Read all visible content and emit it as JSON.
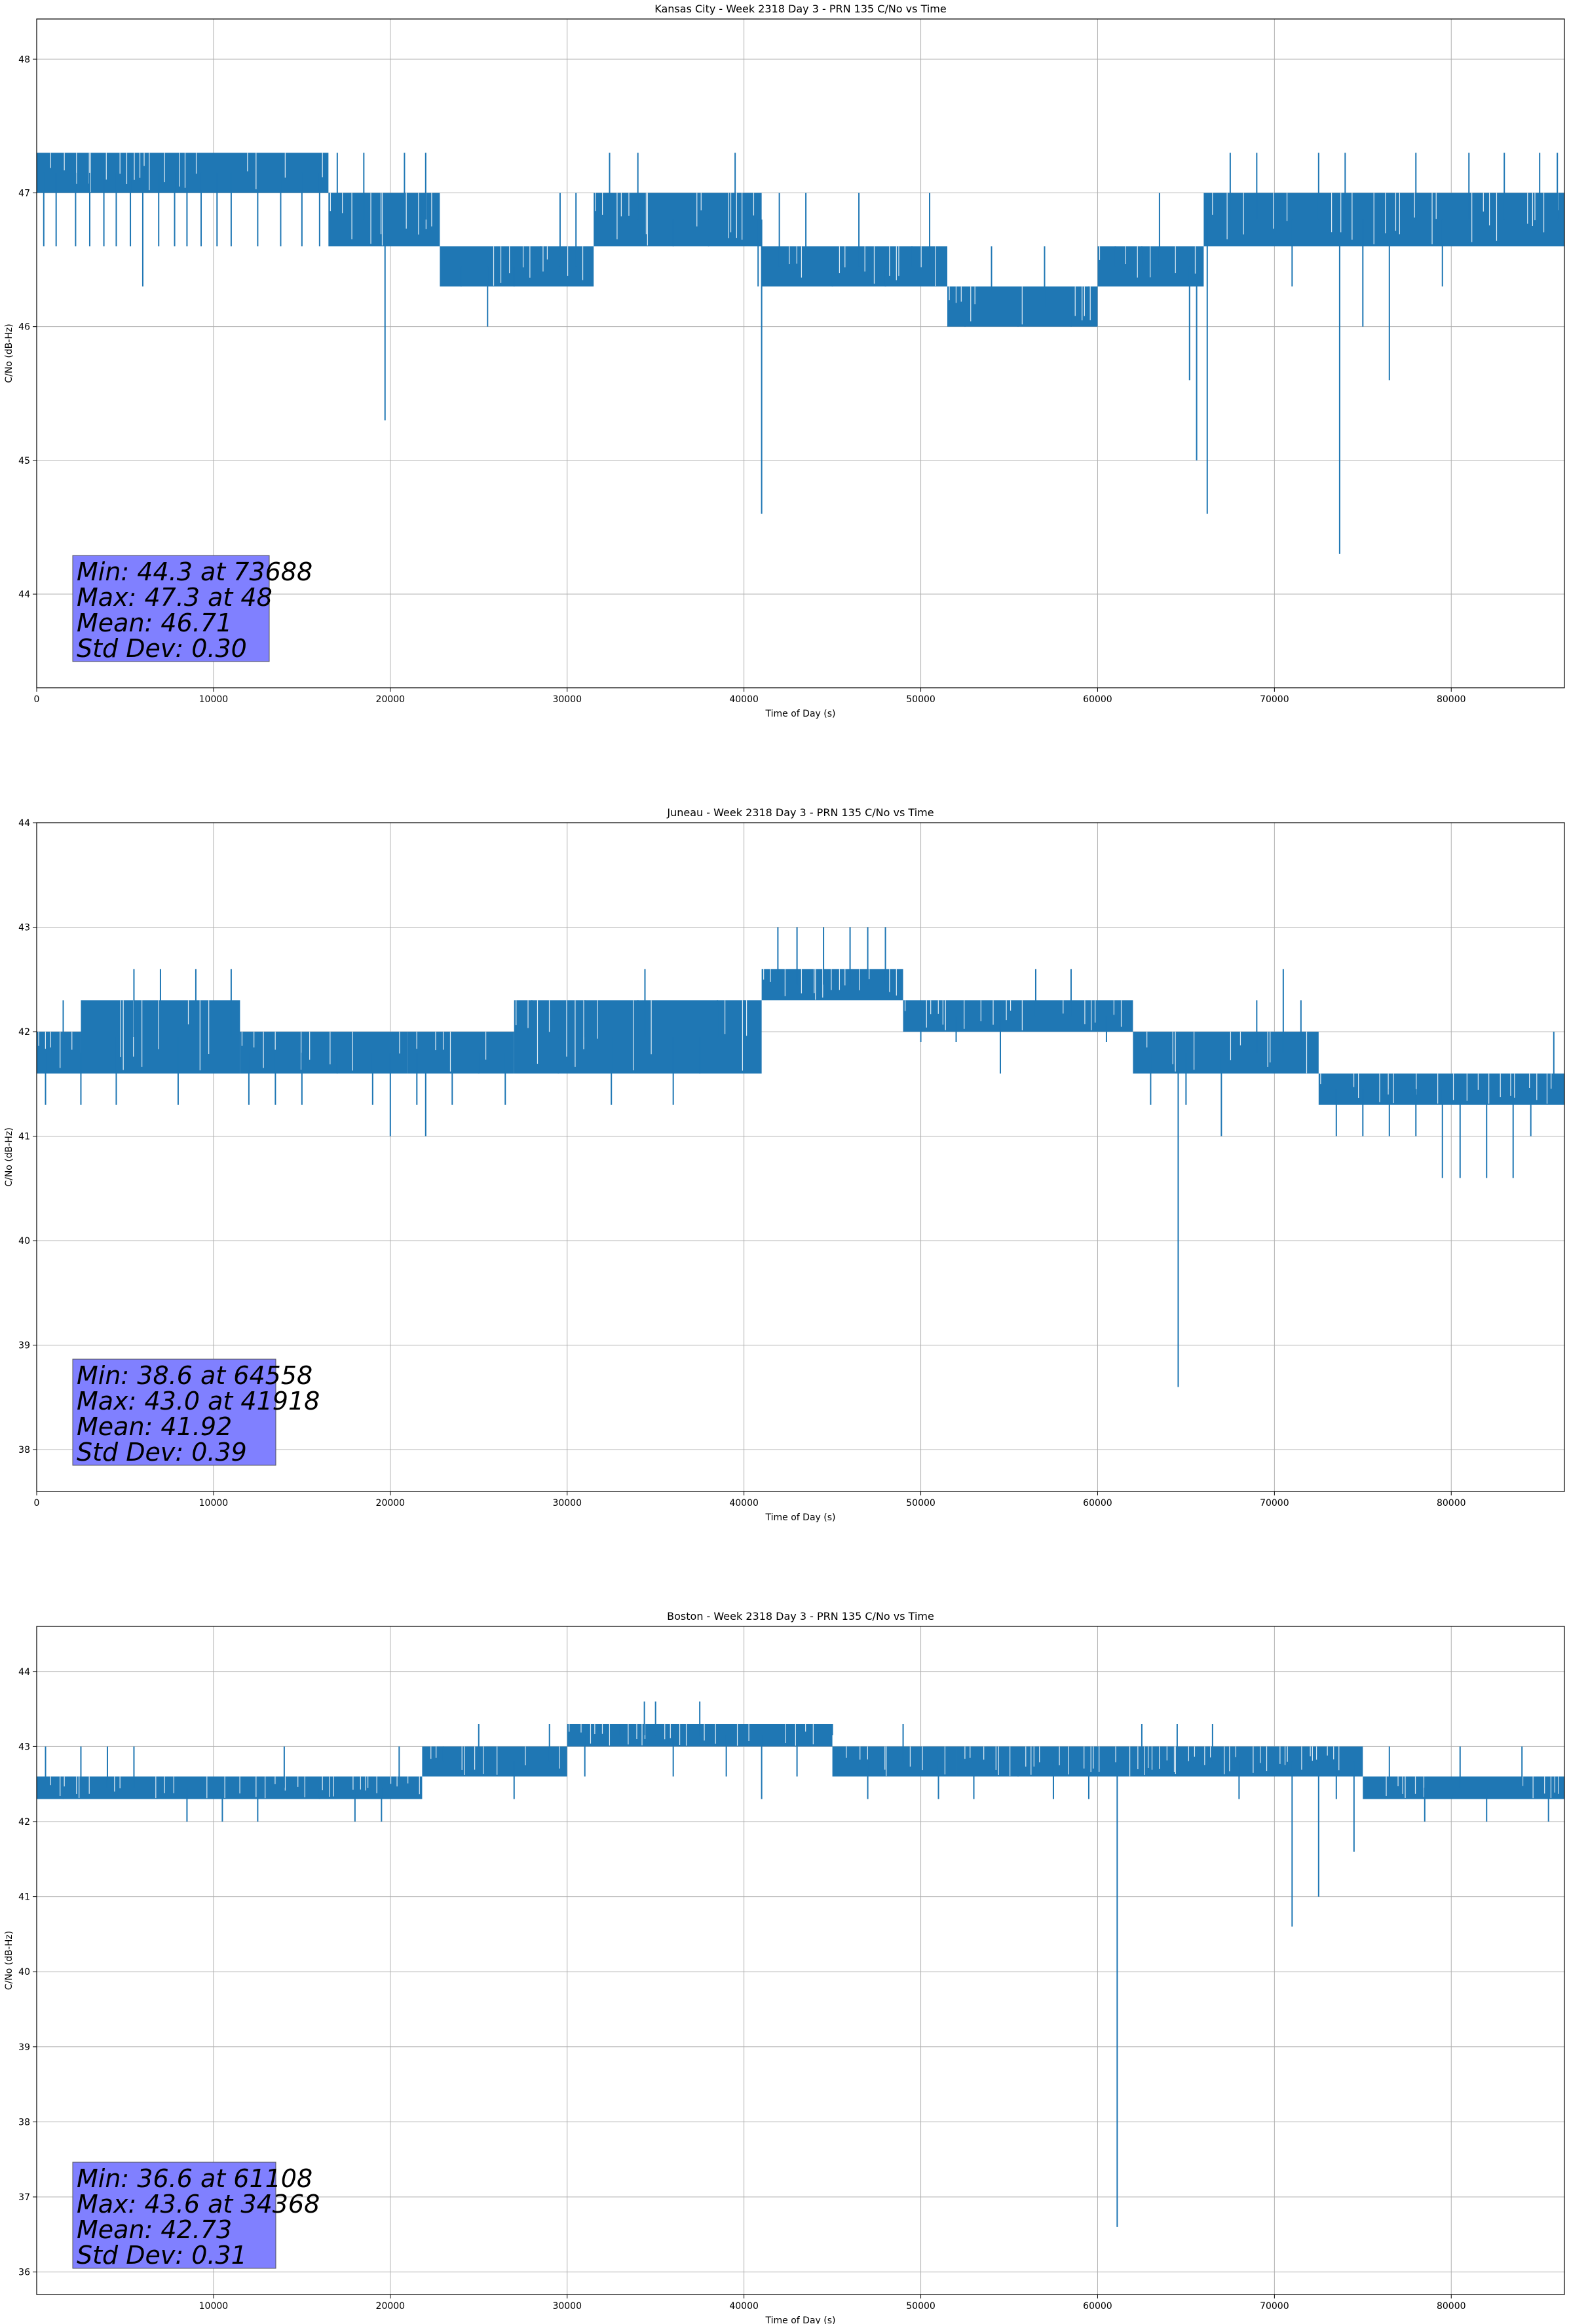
{
  "chart_data": [
    {
      "type": "line",
      "title": "Kansas City - Week 2318 Day 3 - PRN 135 C/No vs Time",
      "xlabel": "Time of Day (s)",
      "ylabel": "C/No (dB-Hz)",
      "xlim": [
        0,
        86400
      ],
      "ylim": [
        43.3,
        48.3
      ],
      "xticks": [
        0,
        10000,
        20000,
        30000,
        40000,
        50000,
        60000,
        70000,
        80000
      ],
      "yticks": [
        44,
        45,
        46,
        47,
        48
      ],
      "grid": true,
      "series_color": "#1f77b4",
      "stats_box": {
        "lines": [
          "Min: 44.3 at 73688",
          "Max: 47.3 at 48",
          "Mean: 46.71",
          "Std Dev: 0.30"
        ],
        "position": "bottom-left",
        "color": "#8080ff"
      },
      "bands": [
        {
          "x": [
            0,
            16500
          ],
          "y": [
            47.0,
            47.3
          ]
        },
        {
          "x": [
            16500,
            22800
          ],
          "y": [
            46.6,
            47.0
          ]
        },
        {
          "x": [
            22800,
            31500
          ],
          "y": [
            46.3,
            46.6
          ]
        },
        {
          "x": [
            31500,
            41000
          ],
          "y": [
            46.6,
            47.0
          ]
        },
        {
          "x": [
            41000,
            51500
          ],
          "y": [
            46.3,
            46.6
          ]
        },
        {
          "x": [
            51500,
            60000
          ],
          "y": [
            46.0,
            46.3
          ]
        },
        {
          "x": [
            60000,
            66000
          ],
          "y": [
            46.3,
            46.6
          ]
        },
        {
          "x": [
            66000,
            86400
          ],
          "y": [
            46.6,
            47.0
          ]
        }
      ],
      "spikes": [
        [
          400,
          46.6
        ],
        [
          1100,
          46.6
        ],
        [
          2200,
          46.6
        ],
        [
          3000,
          46.6
        ],
        [
          3800,
          46.6
        ],
        [
          4500,
          46.6
        ],
        [
          5300,
          46.6
        ],
        [
          6000,
          46.3
        ],
        [
          6900,
          46.6
        ],
        [
          7800,
          46.6
        ],
        [
          8500,
          46.6
        ],
        [
          9300,
          46.6
        ],
        [
          10200,
          46.6
        ],
        [
          11000,
          46.6
        ],
        [
          12500,
          46.6
        ],
        [
          13800,
          46.6
        ],
        [
          15000,
          46.6
        ],
        [
          16000,
          46.6
        ],
        [
          17000,
          47.3
        ],
        [
          18500,
          47.3
        ],
        [
          19700,
          45.3
        ],
        [
          20800,
          47.3
        ],
        [
          22000,
          47.3
        ],
        [
          24000,
          46.3
        ],
        [
          25500,
          46.0
        ],
        [
          27000,
          46.3
        ],
        [
          28500,
          46.6
        ],
        [
          29600,
          47.0
        ],
        [
          30500,
          47.0
        ],
        [
          32400,
          47.3
        ],
        [
          34000,
          47.3
        ],
        [
          36000,
          46.6
        ],
        [
          38000,
          46.6
        ],
        [
          39500,
          47.3
        ],
        [
          40800,
          46.3
        ],
        [
          41000,
          44.6
        ],
        [
          42000,
          47.0
        ],
        [
          43500,
          47.0
        ],
        [
          45000,
          46.3
        ],
        [
          46500,
          47.0
        ],
        [
          48000,
          46.3
        ],
        [
          49500,
          46.6
        ],
        [
          50500,
          47.0
        ],
        [
          52500,
          46.0
        ],
        [
          54000,
          46.6
        ],
        [
          55500,
          46.0
        ],
        [
          57000,
          46.6
        ],
        [
          58500,
          46.0
        ],
        [
          59500,
          46.3
        ],
        [
          61000,
          46.6
        ],
        [
          62500,
          46.6
        ],
        [
          63500,
          47.0
        ],
        [
          65200,
          45.6
        ],
        [
          65600,
          45.0
        ],
        [
          66200,
          44.6
        ],
        [
          67500,
          47.3
        ],
        [
          69000,
          47.3
        ],
        [
          71000,
          46.3
        ],
        [
          72500,
          47.3
        ],
        [
          73688,
          44.3
        ],
        [
          74000,
          47.3
        ],
        [
          75000,
          46.0
        ],
        [
          76500,
          45.6
        ],
        [
          78000,
          47.3
        ],
        [
          79500,
          46.3
        ],
        [
          81000,
          47.3
        ],
        [
          83000,
          47.3
        ],
        [
          85000,
          47.3
        ],
        [
          86000,
          47.3
        ]
      ]
    },
    {
      "type": "line",
      "title": "Juneau - Week 2318 Day 3 - PRN 135 C/No vs Time",
      "xlabel": "Time of Day (s)",
      "ylabel": "C/No (dB-Hz)",
      "xlim": [
        0,
        86400
      ],
      "ylim": [
        37.6,
        44.0
      ],
      "xticks": [
        0,
        10000,
        20000,
        30000,
        40000,
        50000,
        60000,
        70000,
        80000
      ],
      "yticks": [
        38,
        39,
        40,
        41,
        42,
        43,
        44
      ],
      "grid": true,
      "series_color": "#1f77b4",
      "stats_box": {
        "lines": [
          "Min: 38.6 at 64558",
          "Max: 43.0 at 41918",
          "Mean: 41.92",
          "Std Dev: 0.39"
        ],
        "position": "bottom-left",
        "color": "#8080ff"
      },
      "bands": [
        {
          "x": [
            0,
            2500
          ],
          "y": [
            41.6,
            42.0
          ]
        },
        {
          "x": [
            2500,
            11500
          ],
          "y": [
            41.6,
            42.3
          ]
        },
        {
          "x": [
            11500,
            21000
          ],
          "y": [
            41.6,
            42.0
          ]
        },
        {
          "x": [
            21000,
            27000
          ],
          "y": [
            41.6,
            42.0
          ]
        },
        {
          "x": [
            27000,
            41000
          ],
          "y": [
            41.6,
            42.3
          ]
        },
        {
          "x": [
            41000,
            49000
          ],
          "y": [
            42.3,
            42.6
          ]
        },
        {
          "x": [
            49000,
            62000
          ],
          "y": [
            42.0,
            42.3
          ]
        },
        {
          "x": [
            62000,
            72500
          ],
          "y": [
            41.6,
            42.0
          ]
        },
        {
          "x": [
            72500,
            86400
          ],
          "y": [
            41.3,
            41.6
          ]
        }
      ],
      "spikes": [
        [
          500,
          41.3
        ],
        [
          1500,
          42.3
        ],
        [
          2500,
          41.3
        ],
        [
          4500,
          41.3
        ],
        [
          5500,
          42.6
        ],
        [
          7000,
          42.6
        ],
        [
          8000,
          41.3
        ],
        [
          9000,
          42.6
        ],
        [
          11000,
          42.6
        ],
        [
          12000,
          41.3
        ],
        [
          13500,
          41.3
        ],
        [
          15000,
          41.3
        ],
        [
          17000,
          41.6
        ],
        [
          19000,
          41.3
        ],
        [
          20000,
          41.0
        ],
        [
          21500,
          41.3
        ],
        [
          22000,
          41.0
        ],
        [
          23500,
          41.3
        ],
        [
          25000,
          41.6
        ],
        [
          26500,
          41.3
        ],
        [
          28000,
          42.3
        ],
        [
          29500,
          41.6
        ],
        [
          31000,
          42.3
        ],
        [
          32500,
          41.3
        ],
        [
          34000,
          42.3
        ],
        [
          34400,
          42.6
        ],
        [
          36000,
          41.3
        ],
        [
          37500,
          41.6
        ],
        [
          38500,
          42.3
        ],
        [
          40000,
          42.3
        ],
        [
          41918,
          43.0
        ],
        [
          43000,
          43.0
        ],
        [
          44500,
          43.0
        ],
        [
          46000,
          43.0
        ],
        [
          47000,
          43.0
        ],
        [
          48000,
          43.0
        ],
        [
          50000,
          41.9
        ],
        [
          52000,
          41.9
        ],
        [
          54500,
          41.6
        ],
        [
          56500,
          42.6
        ],
        [
          58500,
          42.6
        ],
        [
          60500,
          41.9
        ],
        [
          63000,
          41.3
        ],
        [
          64558,
          38.6
        ],
        [
          65000,
          41.3
        ],
        [
          67000,
          41.0
        ],
        [
          69000,
          42.3
        ],
        [
          70500,
          42.6
        ],
        [
          71500,
          42.3
        ],
        [
          73500,
          41.0
        ],
        [
          75000,
          41.0
        ],
        [
          76500,
          41.0
        ],
        [
          78000,
          41.0
        ],
        [
          79500,
          40.6
        ],
        [
          80500,
          40.6
        ],
        [
          82000,
          40.6
        ],
        [
          83500,
          40.6
        ],
        [
          84500,
          41.0
        ],
        [
          85800,
          42.0
        ]
      ]
    },
    {
      "type": "line",
      "title": "Boston - Week 2318 Day 3 - PRN 135 C/No vs Time",
      "xlabel": "Time of Day (s)",
      "ylabel": "C/No (dB-Hz)",
      "xlim": [
        0,
        86400
      ],
      "ylim": [
        35.7,
        44.6
      ],
      "xticks": [
        10000,
        20000,
        30000,
        40000,
        50000,
        60000,
        70000,
        80000
      ],
      "yticks": [
        36,
        37,
        38,
        39,
        40,
        41,
        42,
        43,
        44
      ],
      "grid": true,
      "series_color": "#1f77b4",
      "stats_box": {
        "lines": [
          "Min: 36.6 at 61108",
          "Max: 43.6 at 34368",
          "Mean: 42.73",
          "Std Dev: 0.31"
        ],
        "position": "bottom-left",
        "color": "#8080ff"
      },
      "bands": [
        {
          "x": [
            0,
            21800
          ],
          "y": [
            42.3,
            42.6
          ]
        },
        {
          "x": [
            21800,
            30000
          ],
          "y": [
            42.6,
            43.0
          ]
        },
        {
          "x": [
            30000,
            45000
          ],
          "y": [
            43.0,
            43.3
          ]
        },
        {
          "x": [
            45000,
            52000
          ],
          "y": [
            42.6,
            43.0
          ]
        },
        {
          "x": [
            52000,
            75000
          ],
          "y": [
            42.6,
            43.0
          ]
        },
        {
          "x": [
            75000,
            86400
          ],
          "y": [
            42.3,
            42.6
          ]
        }
      ],
      "spikes": [
        [
          500,
          43.0
        ],
        [
          1500,
          42.3
        ],
        [
          2500,
          43.0
        ],
        [
          4000,
          43.0
        ],
        [
          5500,
          43.0
        ],
        [
          6800,
          42.3
        ],
        [
          8500,
          42.0
        ],
        [
          10500,
          42.0
        ],
        [
          12500,
          42.0
        ],
        [
          14000,
          43.0
        ],
        [
          16000,
          42.3
        ],
        [
          18000,
          42.0
        ],
        [
          19500,
          42.0
        ],
        [
          20500,
          43.0
        ],
        [
          23000,
          43.0
        ],
        [
          25000,
          43.3
        ],
        [
          27000,
          42.3
        ],
        [
          29000,
          43.3
        ],
        [
          31000,
          42.6
        ],
        [
          33000,
          43.3
        ],
        [
          34368,
          43.6
        ],
        [
          35000,
          43.6
        ],
        [
          36000,
          42.6
        ],
        [
          37500,
          43.6
        ],
        [
          39000,
          42.6
        ],
        [
          41000,
          42.3
        ],
        [
          43000,
          42.6
        ],
        [
          45000,
          43.3
        ],
        [
          47000,
          42.3
        ],
        [
          49000,
          43.3
        ],
        [
          51000,
          42.3
        ],
        [
          53000,
          42.3
        ],
        [
          55500,
          42.6
        ],
        [
          57500,
          42.3
        ],
        [
          59500,
          42.3
        ],
        [
          61108,
          36.6
        ],
        [
          62500,
          43.3
        ],
        [
          64500,
          43.3
        ],
        [
          66500,
          43.3
        ],
        [
          68000,
          42.3
        ],
        [
          71000,
          40.6
        ],
        [
          72500,
          41.0
        ],
        [
          73500,
          42.3
        ],
        [
          74500,
          41.6
        ],
        [
          76500,
          43.0
        ],
        [
          78500,
          42.0
        ],
        [
          80500,
          43.0
        ],
        [
          82000,
          42.0
        ],
        [
          84000,
          43.0
        ],
        [
          85500,
          42.0
        ]
      ]
    }
  ]
}
